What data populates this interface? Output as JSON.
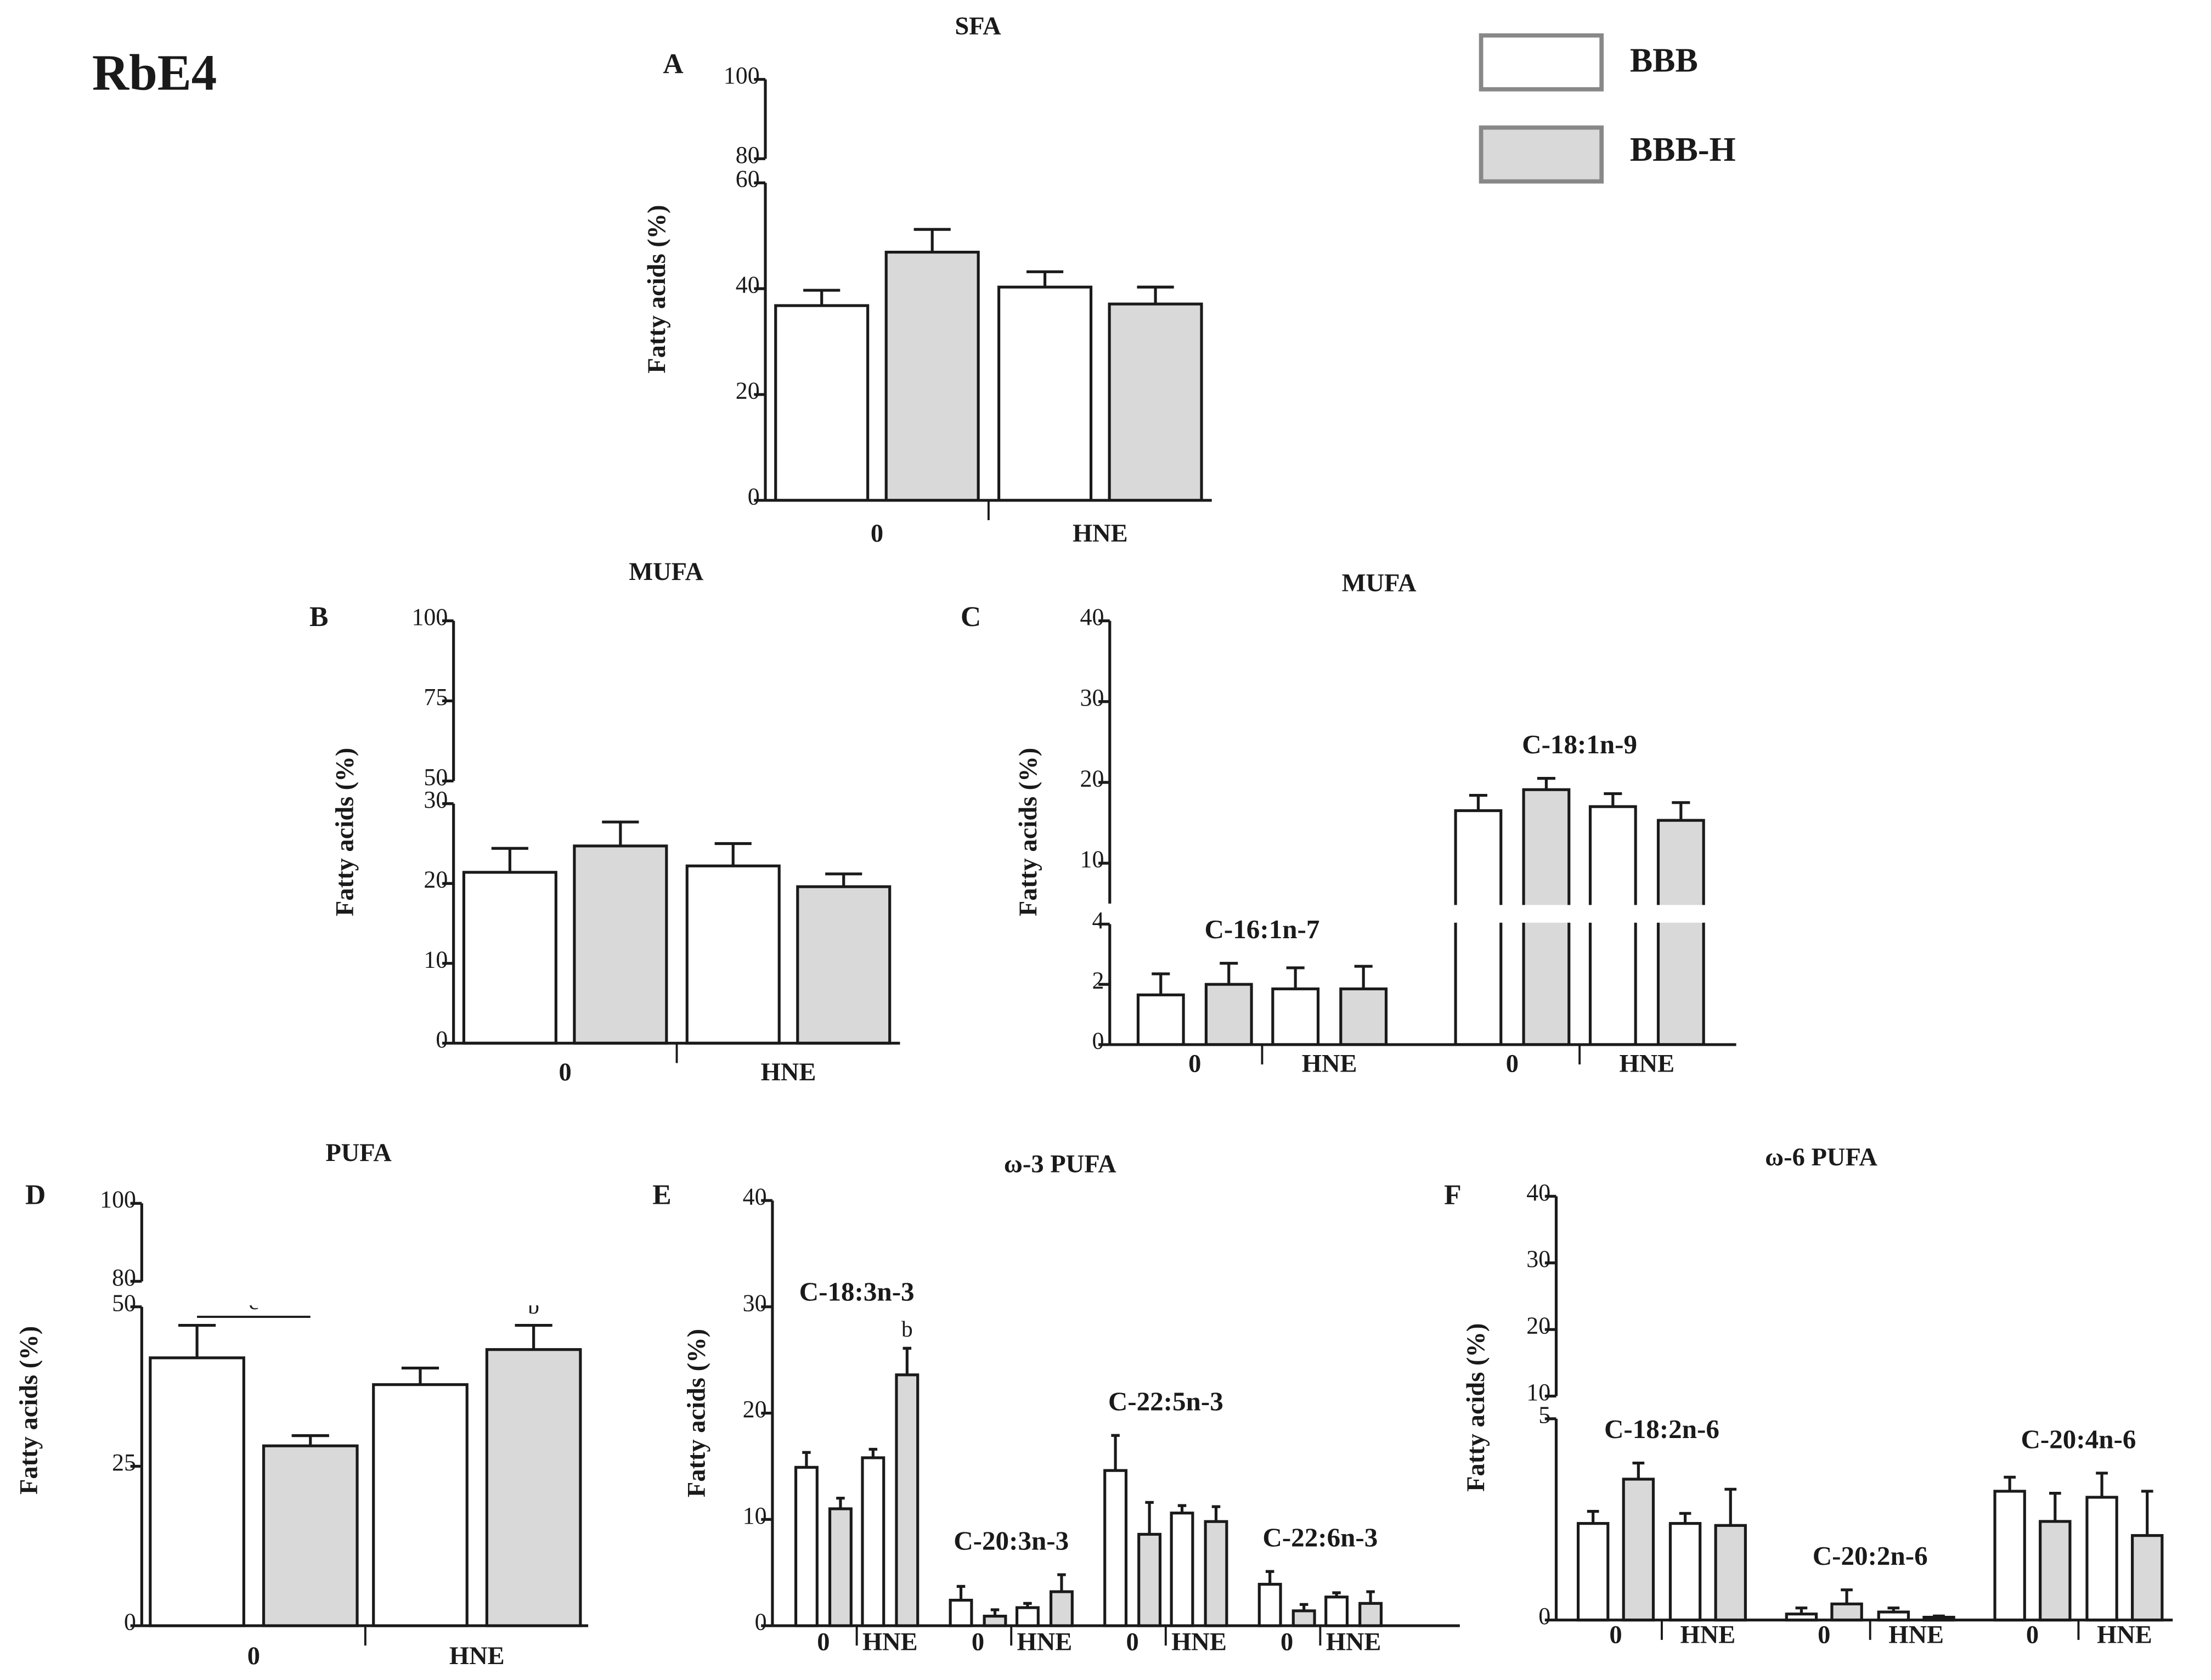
{
  "figure_label": "RbE4",
  "legend": [
    {
      "name": "BBB",
      "color": "#ffffff"
    },
    {
      "name": "BBB-H",
      "color": "#d9d9d9"
    }
  ],
  "chart_data": [
    {
      "type": "bar",
      "panel": "A",
      "title": "SFA",
      "ylabel": "Fatty acids (%)",
      "categories": [
        "0",
        "HNE"
      ],
      "series": [
        {
          "values": [
            36.8,
            40.3
          ],
          "errors": [
            2.9,
            2.9
          ]
        },
        {
          "values": [
            46.9,
            37.1
          ],
          "errors": [
            4.3,
            3.2
          ]
        }
      ],
      "ylim": [
        0,
        100
      ],
      "axis_break": [
        60,
        80
      ],
      "yticks": [
        0,
        20,
        40,
        60,
        80,
        100
      ]
    },
    {
      "type": "bar",
      "panel": "B",
      "title": "MUFA",
      "ylabel": "Fatty acids (%)",
      "categories": [
        "0",
        "HNE"
      ],
      "series": [
        {
          "values": [
            21.4,
            22.2
          ],
          "errors": [
            3.0,
            2.8
          ]
        },
        {
          "values": [
            24.7,
            19.6
          ],
          "errors": [
            3.0,
            1.6
          ]
        }
      ],
      "ylim": [
        0,
        100
      ],
      "axis_break": [
        30,
        50
      ],
      "yticks": [
        0,
        10,
        20,
        30,
        50,
        75,
        100
      ]
    },
    {
      "type": "bar",
      "panel": "C",
      "title": "MUFA",
      "ylabel": "Fatty acids (%)",
      "groups": [
        "C-16:1n-7",
        "C-18:1n-9"
      ],
      "categories": [
        "0",
        "HNE",
        "0",
        "HNE"
      ],
      "series": [
        {
          "values": [
            1.65,
            1.85,
            16.5,
            17.0
          ],
          "errors": [
            0.7,
            0.7,
            1.9,
            1.6
          ]
        },
        {
          "values": [
            2.0,
            1.85,
            19.1,
            15.3
          ],
          "errors": [
            0.7,
            0.75,
            1.4,
            2.2
          ]
        }
      ],
      "ylim": [
        0,
        40
      ],
      "axis_break": [
        4,
        5
      ],
      "yticks": [
        0,
        2,
        4,
        10,
        20,
        30,
        40
      ]
    },
    {
      "type": "bar",
      "panel": "D",
      "title": "PUFA",
      "ylabel": "Fatty acids (%)",
      "categories": [
        "0",
        "HNE"
      ],
      "series": [
        {
          "values": [
            42.0,
            37.8
          ],
          "errors": [
            5.1,
            2.6
          ],
          "letters": [
            "c",
            null
          ]
        },
        {
          "values": [
            28.2,
            43.3
          ],
          "errors": [
            1.6,
            3.8
          ],
          "letters": [
            null,
            "b"
          ]
        }
      ],
      "ylim": [
        0,
        100
      ],
      "axis_break": [
        50,
        80
      ],
      "yticks": [
        0,
        25,
        50,
        80,
        100
      ]
    },
    {
      "type": "bar",
      "panel": "E",
      "title": "ω-3 PUFA",
      "ylabel": "Fatty acids (%)",
      "groups": [
        "C-18:3n-3",
        "C-20:3n-3",
        "C-22:5n-3",
        "C-22:6n-3"
      ],
      "categories": [
        "0",
        "HNE",
        "0",
        "HNE",
        "0",
        "HNE",
        "0",
        "HNE"
      ],
      "series": [
        {
          "values": [
            14.9,
            15.8,
            2.4,
            1.7,
            14.6,
            10.6,
            3.9,
            2.7
          ],
          "errors": [
            1.4,
            0.8,
            1.3,
            0.4,
            3.3,
            0.7,
            1.2,
            0.4
          ]
        },
        {
          "values": [
            11.0,
            23.6,
            0.9,
            3.2,
            8.6,
            9.8,
            1.4,
            2.1
          ],
          "errors": [
            1.0,
            2.5,
            0.6,
            1.6,
            3.0,
            1.4,
            0.6,
            1.1
          ],
          "letters": [
            null,
            "b",
            null,
            null,
            null,
            null,
            null,
            null
          ]
        }
      ],
      "ylim": [
        0,
        40
      ],
      "yticks": [
        0,
        10,
        20,
        30,
        40
      ]
    },
    {
      "type": "bar",
      "panel": "F",
      "title": "ω-6 PUFA",
      "ylabel": "Fatty acids (%)",
      "groups": [
        "C-18:2n-6",
        "C-20:2n-6",
        "C-20:4n-6"
      ],
      "categories": [
        "0",
        "HNE",
        "0",
        "HNE",
        "0",
        "HNE"
      ],
      "series": [
        {
          "values": [
            2.4,
            2.4,
            0.15,
            0.2,
            3.2,
            3.05
          ],
          "errors": [
            0.3,
            0.25,
            0.15,
            0.1,
            0.35,
            0.6
          ]
        },
        {
          "values": [
            3.5,
            2.35,
            0.4,
            0.07,
            2.45,
            2.1
          ],
          "errors": [
            0.4,
            0.9,
            0.35,
            0.03,
            0.7,
            1.1
          ]
        }
      ],
      "ylim": [
        0,
        40
      ],
      "axis_break": [
        5,
        10
      ],
      "yticks": [
        0,
        5,
        10,
        20,
        30,
        40
      ]
    }
  ]
}
